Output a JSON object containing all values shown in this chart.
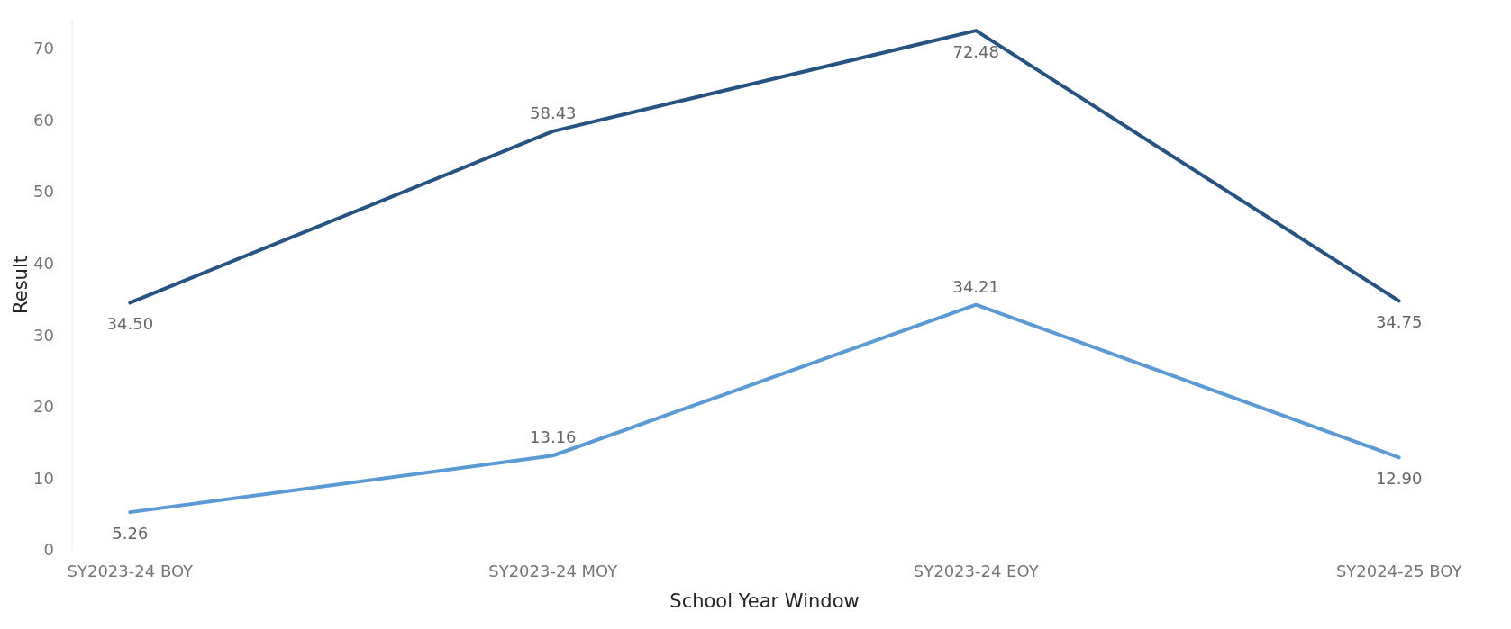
{
  "chart_data": {
    "type": "line",
    "xlabel": "School Year Window",
    "ylabel": "Result",
    "categories": [
      "SY2023-24 BOY",
      "SY2023-24 MOY",
      "SY2023-24 EOY",
      "SY2024-25 BOY"
    ],
    "series": [
      {
        "color": "#255382",
        "values": [
          34.5,
          58.43,
          72.48,
          34.75
        ],
        "value_labels": [
          "34.50",
          "58.43",
          "72.48",
          "34.75"
        ]
      },
      {
        "color": "#5b9bd5",
        "values": [
          5.26,
          13.16,
          34.21,
          12.9
        ],
        "value_labels": [
          "5.26",
          "13.16",
          "34.21",
          "12.90"
        ]
      }
    ],
    "ylim": [
      0,
      74
    ],
    "yticks": [
      0,
      10,
      20,
      30,
      40,
      50,
      60,
      70
    ],
    "marker": "none",
    "line_style": "solid"
  }
}
